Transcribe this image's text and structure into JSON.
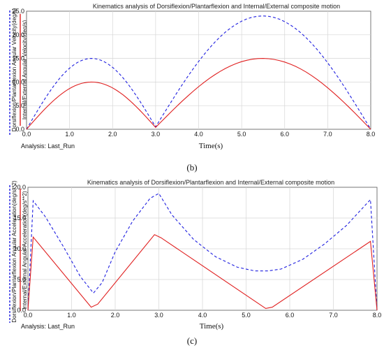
{
  "chart_data": [
    {
      "type": "line",
      "title": "Kinematics analysis of Dorsiflexion/Plantarflexion and Internal/External composite motion",
      "xlabel": "Time(s)",
      "ylabel_outer": "Dorsiflexion/Plantarflexion Angular Velocity(deg/s)",
      "ylabel_inner": "Internal/External Angular Velocity(deg/s)",
      "xlim": [
        0,
        8
      ],
      "ylim": [
        0,
        25
      ],
      "xticks": [
        "0.0",
        "1.0",
        "2.0",
        "3.0",
        "4.0",
        "5.0",
        "6.0",
        "7.0",
        "8.0"
      ],
      "yticks": [
        "0.0",
        "5.0",
        "10.0",
        "15.0",
        "20.0",
        "25.0"
      ],
      "grid": true,
      "analysis_label": "Analysis:  Last_Run",
      "caption": "(b)",
      "series": [
        {
          "style": "dashed",
          "color": "#1f1fe0",
          "x": [
            0,
            1.5,
            3.0,
            5.5,
            8.0
          ],
          "y": [
            0,
            15.0,
            0.5,
            24.0,
            0
          ]
        },
        {
          "style": "solid",
          "color": "#e01f1f",
          "x": [
            0,
            1.5,
            3.0,
            5.5,
            8.0
          ],
          "y": [
            0,
            10.0,
            0.4,
            15.0,
            0
          ]
        }
      ]
    },
    {
      "type": "line",
      "title": "Kinematics analysis of Dorsiflexion/Plantarflexion and Internal/External composite motion",
      "xlabel": "Time(s)",
      "ylabel_outer": "Dorsiflexion/Plantarflexion Angular Acceleration(deg/s**2)",
      "ylabel_inner": "Internal/External Angular Acceleration(deg/s**2)",
      "xlim": [
        0,
        8
      ],
      "ylim": [
        0,
        20
      ],
      "xticks": [
        "0.0",
        "1.0",
        "2.0",
        "3.0",
        "4.0",
        "5.0",
        "6.0",
        "7.0",
        "8.0"
      ],
      "yticks": [
        "0.0",
        "5.0",
        "10.0",
        "15.0",
        "20.0"
      ],
      "grid": true,
      "analysis_label": "Analysis:  Last_Run",
      "caption": "(c)",
      "series": [
        {
          "style": "dashed",
          "color": "#1f1fe0",
          "x": [
            0,
            0.12,
            0.4,
            0.8,
            1.2,
            1.5,
            1.7,
            2.0,
            2.4,
            2.8,
            3.0,
            3.3,
            3.8,
            4.3,
            4.8,
            5.2,
            5.5,
            5.8,
            6.3,
            6.8,
            7.3,
            7.85,
            8.0
          ],
          "y": [
            0,
            17.8,
            15.2,
            10.5,
            5.5,
            2.8,
            4.5,
            9.5,
            14.5,
            18.2,
            19.0,
            15.5,
            11.5,
            8.7,
            7.0,
            6.4,
            6.4,
            6.7,
            8.3,
            10.8,
            13.8,
            18.0,
            0
          ]
        },
        {
          "style": "solid",
          "color": "#e01f1f",
          "x": [
            0,
            0.12,
            1.45,
            1.6,
            2.9,
            3.05,
            5.45,
            5.6,
            7.85,
            8.0
          ],
          "y": [
            0,
            11.9,
            0.5,
            1.0,
            12.3,
            11.8,
            0.3,
            0.5,
            11.2,
            0
          ]
        }
      ]
    }
  ]
}
